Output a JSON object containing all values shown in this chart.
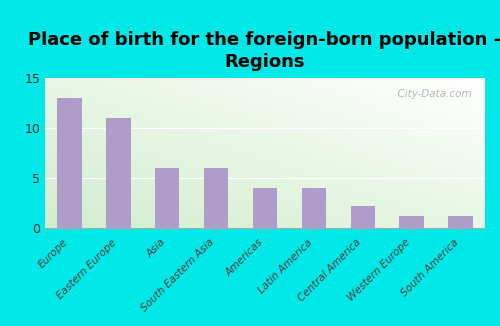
{
  "title": "Place of birth for the foreign-born population -\nRegions",
  "categories": [
    "Europe",
    "Eastern Europe",
    "Asia",
    "South Eastern Asia",
    "Americas",
    "Latin America",
    "Central America",
    "Western Europe",
    "South America"
  ],
  "values": [
    13,
    11,
    6,
    6,
    4,
    4,
    2.2,
    1.2,
    1.2
  ],
  "bar_color": "#b09cc8",
  "background_outer": "#00e8e8",
  "ylim": [
    0,
    15
  ],
  "yticks": [
    0,
    5,
    10,
    15
  ],
  "title_fontsize": 13,
  "tick_label_fontsize": 7.5,
  "tick_label_color": "#5a3a3a",
  "watermark": "  City-Data.com",
  "grid_color": "#ffffff",
  "grad_top_left": "#d0e8c8",
  "grad_bottom_right": "#f5faf0"
}
